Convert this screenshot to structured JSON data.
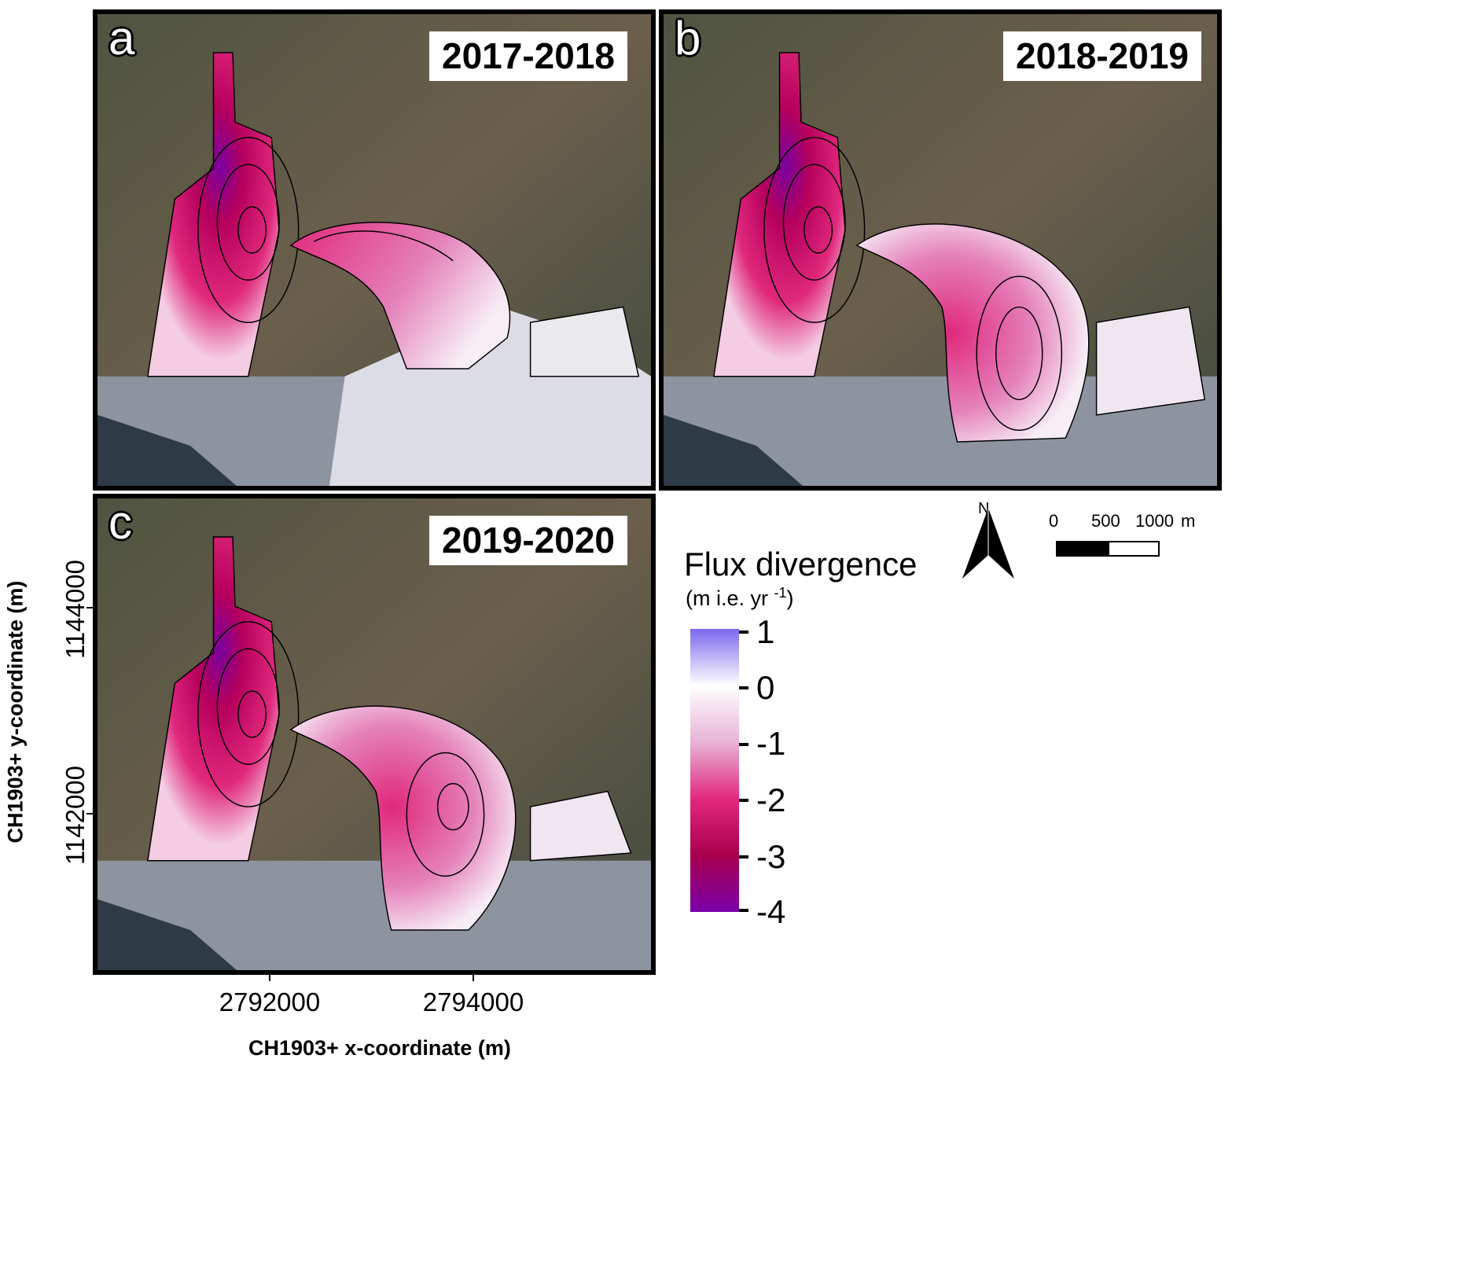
{
  "panels": [
    {
      "letter": "a",
      "year": "2017-2018"
    },
    {
      "letter": "b",
      "year": "2018-2019"
    },
    {
      "letter": "c",
      "year": "2019-2020"
    }
  ],
  "axes": {
    "x_label": "CH1903+ x-coordinate (m)",
    "y_label": "CH1903+ y-coordinate (m)",
    "x_ticks": [
      "2792000",
      "2794000"
    ],
    "y_ticks": [
      "1144000",
      "1142000"
    ]
  },
  "legend": {
    "title": "Flux divergence",
    "units_prefix": "(m i.e. yr",
    "units_sup": "-1",
    "units_suffix": ")",
    "ticks": [
      "1",
      "0",
      "-1",
      "-2",
      "-3",
      "-4"
    ],
    "range": [
      -4,
      1
    ],
    "colors": {
      "max": "#7b68ee",
      "zero": "#ffffff",
      "neg1": "#e7b3d6",
      "neg2": "#e3287f",
      "neg3": "#a8004d",
      "min": "#7a00a8"
    }
  },
  "north_arrow": {
    "label": "N"
  },
  "scale_bar": {
    "labels": [
      "0",
      "500",
      "1000",
      "m"
    ]
  }
}
